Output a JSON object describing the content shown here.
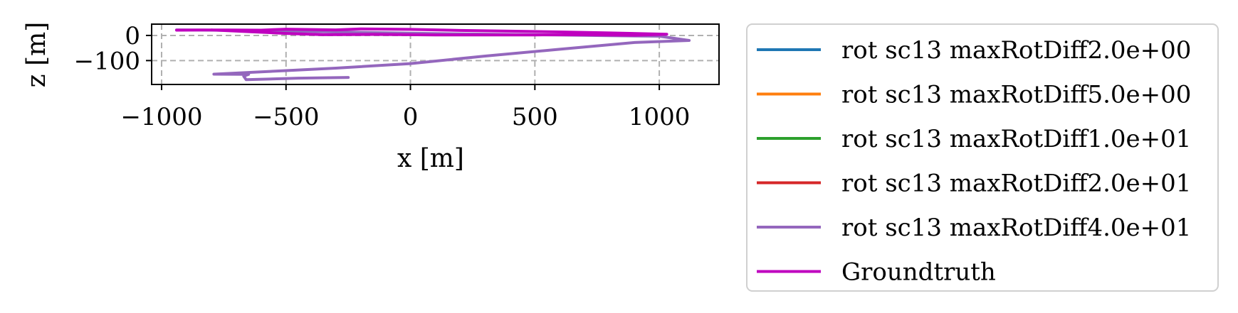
{
  "chart_data": {
    "type": "line",
    "xlabel": "x [m]",
    "ylabel": "z [m]",
    "xlim": [
      -1040,
      1240
    ],
    "ylim": [
      -195,
      45
    ],
    "xticks": [
      -1000,
      -500,
      0,
      500,
      1000
    ],
    "xtick_labels": [
      "−1000",
      "−500",
      "0",
      "500",
      "1000"
    ],
    "yticks": [
      0,
      -100
    ],
    "ytick_labels": [
      "0",
      "−100"
    ],
    "grid": true,
    "legend_position": "right, outside",
    "series": [
      {
        "name": "rot sc13 maxRotDiff2.0e+00",
        "color": "#1f77b4",
        "points": []
      },
      {
        "name": "rot sc13 maxRotDiff5.0e+00",
        "color": "#ff7f0e",
        "points": []
      },
      {
        "name": "rot sc13 maxRotDiff1.0e+01",
        "color": "#2ca02c",
        "points": []
      },
      {
        "name": "rot sc13 maxRotDiff2.0e+01",
        "color": "#d62728",
        "points": []
      },
      {
        "name": "rot sc13 maxRotDiff4.0e+01",
        "color": "#9467bd",
        "points": [
          [
            -940,
            22
          ],
          [
            -700,
            20
          ],
          [
            -500,
            18
          ],
          [
            -300,
            14
          ],
          [
            0,
            9
          ],
          [
            200,
            6
          ],
          [
            500,
            3
          ],
          [
            800,
            -1
          ],
          [
            1000,
            -3
          ],
          [
            1120,
            -20
          ],
          [
            900,
            -28
          ],
          [
            600,
            -55
          ],
          [
            300,
            -82
          ],
          [
            0,
            -112
          ],
          [
            -300,
            -130
          ],
          [
            -500,
            -140
          ],
          [
            -790,
            -154
          ],
          [
            -650,
            -155
          ],
          [
            -670,
            -162
          ],
          [
            -660,
            -176
          ],
          [
            -450,
            -170
          ],
          [
            -250,
            -167
          ]
        ]
      },
      {
        "name": "Groundtruth",
        "color": "#bf00bf",
        "points": [
          [
            -940,
            21
          ],
          [
            -800,
            22
          ],
          [
            -600,
            21
          ],
          [
            -500,
            25
          ],
          [
            -300,
            22
          ],
          [
            -200,
            26
          ],
          [
            0,
            24
          ],
          [
            200,
            20
          ],
          [
            400,
            17
          ],
          [
            600,
            14
          ],
          [
            800,
            10
          ],
          [
            1030,
            5
          ],
          [
            900,
            1
          ],
          [
            700,
            3
          ],
          [
            500,
            2
          ],
          [
            300,
            2
          ],
          [
            100,
            2
          ],
          [
            -10,
            3
          ],
          [
            -150,
            4
          ],
          [
            -350,
            3
          ],
          [
            -500,
            8
          ],
          [
            -650,
            15
          ],
          [
            -800,
            22
          ]
        ]
      }
    ]
  }
}
